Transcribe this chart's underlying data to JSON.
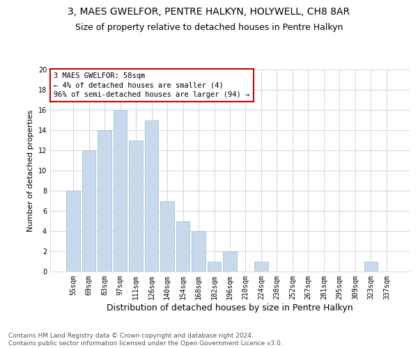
{
  "title": "3, MAES GWELFOR, PENTRE HALKYN, HOLYWELL, CH8 8AR",
  "subtitle": "Size of property relative to detached houses in Pentre Halkyn",
  "xlabel": "Distribution of detached houses by size in Pentre Halkyn",
  "ylabel": "Number of detached properties",
  "categories": [
    "55sqm",
    "69sqm",
    "83sqm",
    "97sqm",
    "111sqm",
    "126sqm",
    "140sqm",
    "154sqm",
    "168sqm",
    "182sqm",
    "196sqm",
    "210sqm",
    "224sqm",
    "238sqm",
    "252sqm",
    "267sqm",
    "281sqm",
    "295sqm",
    "309sqm",
    "323sqm",
    "337sqm"
  ],
  "values": [
    8,
    12,
    14,
    16,
    13,
    15,
    7,
    5,
    4,
    1,
    2,
    0,
    1,
    0,
    0,
    0,
    0,
    0,
    0,
    1,
    0
  ],
  "bar_color": "#c9d9ec",
  "bar_edge_color": "#a8bfd4",
  "annotation_box_text": "3 MAES GWELFOR: 58sqm\n← 4% of detached houses are smaller (4)\n96% of semi-detached houses are larger (94) →",
  "annotation_box_color": "#ffffff",
  "annotation_box_edge_color": "#cc0000",
  "ylim": [
    0,
    20
  ],
  "yticks": [
    0,
    2,
    4,
    6,
    8,
    10,
    12,
    14,
    16,
    18,
    20
  ],
  "grid_color": "#c8d0dc",
  "background_color": "#ffffff",
  "footer_line1": "Contains HM Land Registry data © Crown copyright and database right 2024.",
  "footer_line2": "Contains public sector information licensed under the Open Government Licence v3.0.",
  "title_fontsize": 10,
  "subtitle_fontsize": 9,
  "xlabel_fontsize": 9,
  "ylabel_fontsize": 8,
  "tick_fontsize": 7,
  "annotation_fontsize": 7.5,
  "footer_fontsize": 6.5
}
